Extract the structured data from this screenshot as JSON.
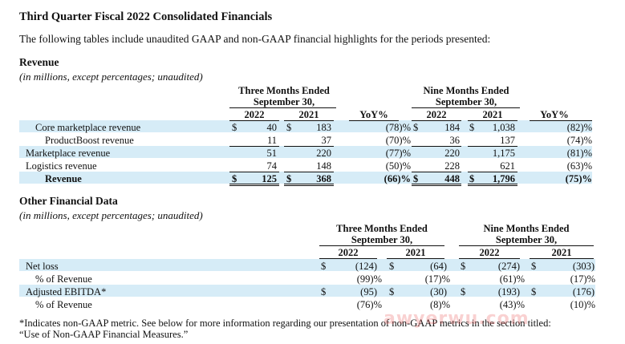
{
  "title": "Third Quarter Fiscal 2022 Consolidated Financials",
  "intro": "The following tables include unaudited GAAP and non-GAAP financial highlights for the periods presented:",
  "revenue": {
    "heading": "Revenue",
    "subheading": "(in millions, except percentages; unaudited)",
    "three_months_header_1": "Three Months Ended",
    "three_months_header_2": "September 30,",
    "nine_months_header_1": "Nine Months Ended",
    "nine_months_header_2": "September 30,",
    "year_a": "2022",
    "year_b": "2021",
    "yoy_label": "YoY%",
    "currency": "$",
    "rows": [
      {
        "label": "Core marketplace revenue",
        "q22": "40",
        "q21": "183",
        "qyoy": "(78)%",
        "n22": "184",
        "n21": "1,038",
        "nyoy": "(82)%"
      },
      {
        "label": "ProductBoost revenue",
        "q22": "11",
        "q21": "37",
        "qyoy": "(70)%",
        "n22": "36",
        "n21": "137",
        "nyoy": "(74)%"
      },
      {
        "label": "Marketplace revenue",
        "q22": "51",
        "q21": "220",
        "qyoy": "(77)%",
        "n22": "220",
        "n21": "1,175",
        "nyoy": "(81)%"
      },
      {
        "label": "Logistics revenue",
        "q22": "74",
        "q21": "148",
        "qyoy": "(50)%",
        "n22": "228",
        "n21": "621",
        "nyoy": "(63)%"
      },
      {
        "label": "Revenue",
        "q22": "125",
        "q21": "368",
        "qyoy": "(66)%",
        "n22": "448",
        "n21": "1,796",
        "nyoy": "(75)%"
      }
    ]
  },
  "other": {
    "heading": "Other Financial Data",
    "subheading": "(in millions, except percentages; unaudited)",
    "three_months_header_1": "Three Months Ended",
    "three_months_header_2": "September 30,",
    "nine_months_header_1": "Nine Months Ended",
    "nine_months_header_2": "September 30,",
    "year_a": "2022",
    "year_b": "2021",
    "currency": "$",
    "rows": [
      {
        "label": "Net loss",
        "q22": "(124)",
        "q21": "(64)",
        "n22": "(274)",
        "n21": "(303)"
      },
      {
        "label": "% of Revenue",
        "q22": "(99)%",
        "q21": "(17)%",
        "n22": "(61)%",
        "n21": "(17)%"
      },
      {
        "label": "Adjusted EBITDA*",
        "q22": "(95)",
        "q21": "(30)",
        "n22": "(193)",
        "n21": "(176)"
      },
      {
        "label": "% of Revenue",
        "q22": "(76)%",
        "q21": "(8)%",
        "n22": "(43)%",
        "n21": "(10)%"
      }
    ]
  },
  "footnote_1": "*Indicates non-GAAP metric. See below for more information regarding our presentation of non-GAAP metrics in the section titled:",
  "footnote_2": "“Use of Non-GAAP Financial Measures.”",
  "watermark": "awyerwu.com"
}
